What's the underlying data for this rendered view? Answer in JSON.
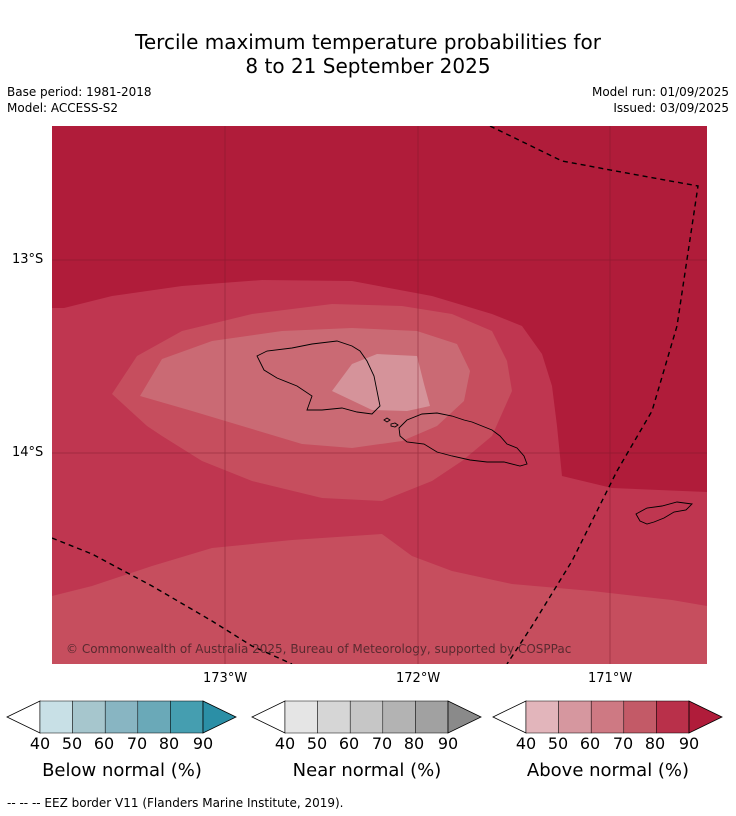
{
  "title_line1": "Tercile maximum temperature probabilities for",
  "title_line2": "8 to 21 September 2025",
  "base_period": "Base period: 1981-2018",
  "model": "Model: ACCESS-S2",
  "model_run": "Model run: 01/09/2025",
  "issued": "Issued: 03/09/2025",
  "lat_labels": [
    "13°S",
    "14°S"
  ],
  "lon_labels": [
    "173°W",
    "172°W",
    "171°W"
  ],
  "copyright": "© Commonwealth of Australia 2025, Bureau of Meteorology, supported by COSPPac",
  "legend": [
    {
      "title": "Below normal (%)",
      "ticks": [
        "40",
        "50",
        "60",
        "70",
        "80",
        "90"
      ],
      "colors": [
        "#ffffff",
        "#c8e0e6",
        "#a6c6cd",
        "#88b5c2",
        "#6aa9b8",
        "#459eb0",
        "#2b8fa6"
      ]
    },
    {
      "title": "Near normal (%)",
      "ticks": [
        "40",
        "50",
        "60",
        "70",
        "80",
        "90"
      ],
      "colors": [
        "#ffffff",
        "#e5e5e5",
        "#d6d6d6",
        "#c6c6c6",
        "#b3b3b3",
        "#a1a1a1",
        "#8a8a8a"
      ]
    },
    {
      "title": "Above normal (%)",
      "ticks": [
        "40",
        "50",
        "60",
        "70",
        "80",
        "90"
      ],
      "colors": [
        "#ffffff",
        "#e2b5bb",
        "#d6979f",
        "#ce7983",
        "#c35a67",
        "#b9304a",
        "#b01c3a"
      ]
    }
  ],
  "footer": "--  --  -- EEZ border V11 (Flanders Marine Institute, 2019).",
  "map_colors": {
    "above_90": "#b01c3a",
    "above_80": "#bf3650",
    "above_70": "#c64e5e",
    "above_60": "#ca6a74",
    "above_50": "#d5939a"
  }
}
